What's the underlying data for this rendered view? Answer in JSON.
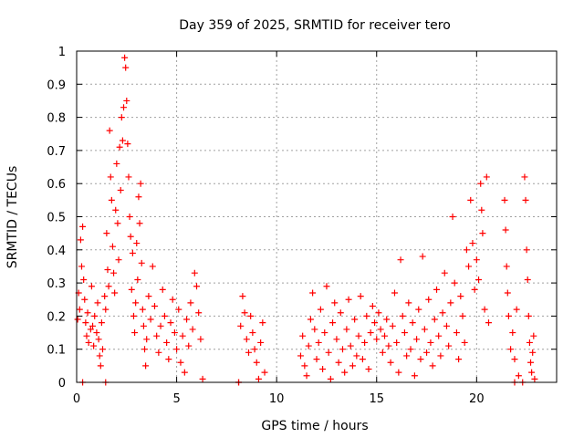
{
  "chart_data": {
    "type": "scatter",
    "title": "Day 359 of 2025, SRMTID for receiver tero",
    "xlabel": "GPS time / hours",
    "ylabel": "SRMTID / TECUs",
    "xlim": [
      0,
      24
    ],
    "ylim": [
      0,
      1
    ],
    "xticks": [
      0,
      5,
      10,
      15,
      20
    ],
    "xtick_labels": [
      "0",
      "5",
      "10",
      "15",
      "20"
    ],
    "yticks": [
      0,
      0.1,
      0.2,
      0.3,
      0.4,
      0.5,
      0.6,
      0.7,
      0.8,
      0.9,
      1
    ],
    "ytick_labels": [
      "0",
      "0.1",
      "0.2",
      "0.3",
      "0.4",
      "0.5",
      "0.6",
      "0.7",
      "0.8",
      "0.9",
      "1"
    ],
    "grid": true,
    "marker": "+",
    "color": "#ff0000",
    "series": [
      {
        "name": "SRMTID",
        "points": [
          [
            0.05,
            0.19
          ],
          [
            0.1,
            0.27
          ],
          [
            0.15,
            0.22
          ],
          [
            0.2,
            0.43
          ],
          [
            0.25,
            0.35
          ],
          [
            0.3,
            0.47
          ],
          [
            0.35,
            0.31
          ],
          [
            0.4,
            0.25
          ],
          [
            0.45,
            0.18
          ],
          [
            0.5,
            0.14
          ],
          [
            0.55,
            0.21
          ],
          [
            0.6,
            0.12
          ],
          [
            0.7,
            0.16
          ],
          [
            0.75,
            0.29
          ],
          [
            0.8,
            0.17
          ],
          [
            0.85,
            0.11
          ],
          [
            0.9,
            0.2
          ],
          [
            1.0,
            0.15
          ],
          [
            1.05,
            0.24
          ],
          [
            1.1,
            0.13
          ],
          [
            1.15,
            0.08
          ],
          [
            1.2,
            0.05
          ],
          [
            1.25,
            0.18
          ],
          [
            1.3,
            0.1
          ],
          [
            1.4,
            0.26
          ],
          [
            1.45,
            0.22
          ],
          [
            1.5,
            0.45
          ],
          [
            1.55,
            0.34
          ],
          [
            1.6,
            0.29
          ],
          [
            1.65,
            0.76
          ],
          [
            1.7,
            0.62
          ],
          [
            1.75,
            0.55
          ],
          [
            1.8,
            0.41
          ],
          [
            1.85,
            0.33
          ],
          [
            1.9,
            0.27
          ],
          [
            1.95,
            0.52
          ],
          [
            2.0,
            0.66
          ],
          [
            2.05,
            0.48
          ],
          [
            2.1,
            0.37
          ],
          [
            2.15,
            0.71
          ],
          [
            2.2,
            0.58
          ],
          [
            2.25,
            0.8
          ],
          [
            2.3,
            0.73
          ],
          [
            2.35,
            0.83
          ],
          [
            2.4,
            0.98
          ],
          [
            2.45,
            0.95
          ],
          [
            2.5,
            0.85
          ],
          [
            2.55,
            0.72
          ],
          [
            2.6,
            0.62
          ],
          [
            2.65,
            0.5
          ],
          [
            2.7,
            0.44
          ],
          [
            2.75,
            0.28
          ],
          [
            2.8,
            0.39
          ],
          [
            2.85,
            0.2
          ],
          [
            2.9,
            0.15
          ],
          [
            2.95,
            0.24
          ],
          [
            3.0,
            0.42
          ],
          [
            3.05,
            0.31
          ],
          [
            3.1,
            0.56
          ],
          [
            3.15,
            0.48
          ],
          [
            3.2,
            0.6
          ],
          [
            3.25,
            0.36
          ],
          [
            3.3,
            0.22
          ],
          [
            3.35,
            0.17
          ],
          [
            3.4,
            0.1
          ],
          [
            3.45,
            0.05
          ],
          [
            3.5,
            0.13
          ],
          [
            3.6,
            0.26
          ],
          [
            3.7,
            0.19
          ],
          [
            3.8,
            0.35
          ],
          [
            3.9,
            0.23
          ],
          [
            4.0,
            0.14
          ],
          [
            4.1,
            0.09
          ],
          [
            4.2,
            0.17
          ],
          [
            4.3,
            0.28
          ],
          [
            4.4,
            0.2
          ],
          [
            4.5,
            0.12
          ],
          [
            4.6,
            0.07
          ],
          [
            4.7,
            0.18
          ],
          [
            4.8,
            0.25
          ],
          [
            4.9,
            0.15
          ],
          [
            5.0,
            0.1
          ],
          [
            5.1,
            0.22
          ],
          [
            5.2,
            0.06
          ],
          [
            5.3,
            0.14
          ],
          [
            5.4,
            0.03
          ],
          [
            5.5,
            0.19
          ],
          [
            5.6,
            0.11
          ],
          [
            5.7,
            0.24
          ],
          [
            5.8,
            0.16
          ],
          [
            5.9,
            0.33
          ],
          [
            6.0,
            0.29
          ],
          [
            6.1,
            0.21
          ],
          [
            6.2,
            0.13
          ],
          [
            6.3,
            0.01
          ],
          [
            8.1,
            0.0
          ],
          [
            8.2,
            0.17
          ],
          [
            8.3,
            0.26
          ],
          [
            8.4,
            0.21
          ],
          [
            8.5,
            0.13
          ],
          [
            8.6,
            0.09
          ],
          [
            8.7,
            0.2
          ],
          [
            8.8,
            0.15
          ],
          [
            8.9,
            0.1
          ],
          [
            9.0,
            0.06
          ],
          [
            9.1,
            0.01
          ],
          [
            9.2,
            0.12
          ],
          [
            9.3,
            0.18
          ],
          [
            9.4,
            0.03
          ],
          [
            11.2,
            0.08
          ],
          [
            11.3,
            0.14
          ],
          [
            11.4,
            0.05
          ],
          [
            11.5,
            0.02
          ],
          [
            11.6,
            0.11
          ],
          [
            11.7,
            0.19
          ],
          [
            11.8,
            0.27
          ],
          [
            11.9,
            0.16
          ],
          [
            12.0,
            0.07
          ],
          [
            12.1,
            0.12
          ],
          [
            12.2,
            0.22
          ],
          [
            12.3,
            0.04
          ],
          [
            12.4,
            0.15
          ],
          [
            12.5,
            0.29
          ],
          [
            12.6,
            0.09
          ],
          [
            12.7,
            0.01
          ],
          [
            12.8,
            0.18
          ],
          [
            12.9,
            0.24
          ],
          [
            13.0,
            0.13
          ],
          [
            13.1,
            0.06
          ],
          [
            13.2,
            0.21
          ],
          [
            13.3,
            0.1
          ],
          [
            13.4,
            0.03
          ],
          [
            13.5,
            0.16
          ],
          [
            13.6,
            0.25
          ],
          [
            13.7,
            0.11
          ],
          [
            13.8,
            0.05
          ],
          [
            13.9,
            0.19
          ],
          [
            14.0,
            0.08
          ],
          [
            14.1,
            0.14
          ],
          [
            14.2,
            0.26
          ],
          [
            14.3,
            0.07
          ],
          [
            14.4,
            0.12
          ],
          [
            14.5,
            0.2
          ],
          [
            14.6,
            0.04
          ],
          [
            14.7,
            0.15
          ],
          [
            14.8,
            0.23
          ],
          [
            14.9,
            0.18
          ],
          [
            15.0,
            0.13
          ],
          [
            15.1,
            0.21
          ],
          [
            15.2,
            0.16
          ],
          [
            15.3,
            0.09
          ],
          [
            15.4,
            0.14
          ],
          [
            15.5,
            0.19
          ],
          [
            15.6,
            0.11
          ],
          [
            15.7,
            0.06
          ],
          [
            15.8,
            0.17
          ],
          [
            15.9,
            0.27
          ],
          [
            16.0,
            0.12
          ],
          [
            16.1,
            0.03
          ],
          [
            16.2,
            0.37
          ],
          [
            16.3,
            0.2
          ],
          [
            16.4,
            0.15
          ],
          [
            16.5,
            0.08
          ],
          [
            16.6,
            0.24
          ],
          [
            16.7,
            0.1
          ],
          [
            16.8,
            0.18
          ],
          [
            16.9,
            0.02
          ],
          [
            17.0,
            0.13
          ],
          [
            17.1,
            0.22
          ],
          [
            17.2,
            0.07
          ],
          [
            17.3,
            0.38
          ],
          [
            17.4,
            0.16
          ],
          [
            17.5,
            0.09
          ],
          [
            17.6,
            0.25
          ],
          [
            17.7,
            0.12
          ],
          [
            17.8,
            0.05
          ],
          [
            17.9,
            0.19
          ],
          [
            18.0,
            0.28
          ],
          [
            18.1,
            0.14
          ],
          [
            18.2,
            0.08
          ],
          [
            18.3,
            0.21
          ],
          [
            18.4,
            0.33
          ],
          [
            18.5,
            0.17
          ],
          [
            18.6,
            0.11
          ],
          [
            18.7,
            0.24
          ],
          [
            18.8,
            0.5
          ],
          [
            18.9,
            0.3
          ],
          [
            19.0,
            0.15
          ],
          [
            19.1,
            0.07
          ],
          [
            19.2,
            0.26
          ],
          [
            19.3,
            0.2
          ],
          [
            19.4,
            0.12
          ],
          [
            19.5,
            0.4
          ],
          [
            19.6,
            0.35
          ],
          [
            19.7,
            0.55
          ],
          [
            19.8,
            0.42
          ],
          [
            19.9,
            0.28
          ],
          [
            20.0,
            0.37
          ],
          [
            20.1,
            0.31
          ],
          [
            20.2,
            0.6
          ],
          [
            20.25,
            0.52
          ],
          [
            20.3,
            0.45
          ],
          [
            20.4,
            0.22
          ],
          [
            20.5,
            0.62
          ],
          [
            20.6,
            0.18
          ],
          [
            21.4,
            0.55
          ],
          [
            21.45,
            0.46
          ],
          [
            21.5,
            0.35
          ],
          [
            21.55,
            0.27
          ],
          [
            21.6,
            0.2
          ],
          [
            21.7,
            0.1
          ],
          [
            21.8,
            0.15
          ],
          [
            21.9,
            0.07
          ],
          [
            22.0,
            0.22
          ],
          [
            22.1,
            0.02
          ],
          [
            22.3,
            0.0
          ],
          [
            22.4,
            0.62
          ],
          [
            22.45,
            0.55
          ],
          [
            22.5,
            0.4
          ],
          [
            22.55,
            0.31
          ],
          [
            22.6,
            0.2
          ],
          [
            22.65,
            0.12
          ],
          [
            22.7,
            0.06
          ],
          [
            22.75,
            0.03
          ],
          [
            22.8,
            0.09
          ],
          [
            22.85,
            0.14
          ],
          [
            22.9,
            0.01
          ],
          [
            0.3,
            0.0
          ],
          [
            1.45,
            0.0
          ],
          [
            8.1,
            0.0
          ],
          [
            21.9,
            0.0
          ]
        ]
      }
    ]
  }
}
